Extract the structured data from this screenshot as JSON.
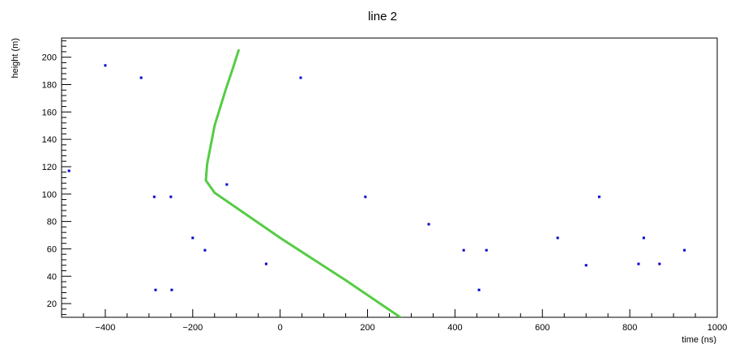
{
  "chart_data": {
    "type": "scatter",
    "title": "line 2",
    "xlabel": "time (ns)",
    "ylabel": "height (m)",
    "xlim": [
      -500,
      1000
    ],
    "ylim": [
      10,
      214
    ],
    "x_ticks": [
      -400,
      -200,
      0,
      200,
      400,
      600,
      800,
      1000
    ],
    "y_ticks": [
      20,
      40,
      60,
      80,
      100,
      120,
      140,
      160,
      180,
      200
    ],
    "grid": false,
    "legend": "none",
    "colors": {
      "points": "#0000cc",
      "line": "#55cc44"
    },
    "series": [
      {
        "type": "scatter",
        "points": [
          {
            "x": -400,
            "y": 194
          },
          {
            "x": -318,
            "y": 185
          },
          {
            "x": 47,
            "y": 185
          },
          {
            "x": -483,
            "y": 117
          },
          {
            "x": -122,
            "y": 107
          },
          {
            "x": -288,
            "y": 98
          },
          {
            "x": -250,
            "y": 98
          },
          {
            "x": 195,
            "y": 98
          },
          {
            "x": 730,
            "y": 98
          },
          {
            "x": 340,
            "y": 78
          },
          {
            "x": -200,
            "y": 68
          },
          {
            "x": 635,
            "y": 68
          },
          {
            "x": 832,
            "y": 68
          },
          {
            "x": -172,
            "y": 59
          },
          {
            "x": 420,
            "y": 59
          },
          {
            "x": 472,
            "y": 59
          },
          {
            "x": 925,
            "y": 59
          },
          {
            "x": -32,
            "y": 49
          },
          {
            "x": 700,
            "y": 48
          },
          {
            "x": 820,
            "y": 49
          },
          {
            "x": 868,
            "y": 49
          },
          {
            "x": -285,
            "y": 30
          },
          {
            "x": -248,
            "y": 30
          },
          {
            "x": 455,
            "y": 30
          }
        ]
      },
      {
        "type": "line",
        "points": [
          {
            "x": 275,
            "y": 10
          },
          {
            "x": 150,
            "y": 37
          },
          {
            "x": 0,
            "y": 68
          },
          {
            "x": -150,
            "y": 101
          },
          {
            "x": -170,
            "y": 110
          },
          {
            "x": -167,
            "y": 122
          },
          {
            "x": -150,
            "y": 150
          },
          {
            "x": -125,
            "y": 176
          },
          {
            "x": -108,
            "y": 192
          },
          {
            "x": -95,
            "y": 205
          }
        ]
      }
    ]
  }
}
